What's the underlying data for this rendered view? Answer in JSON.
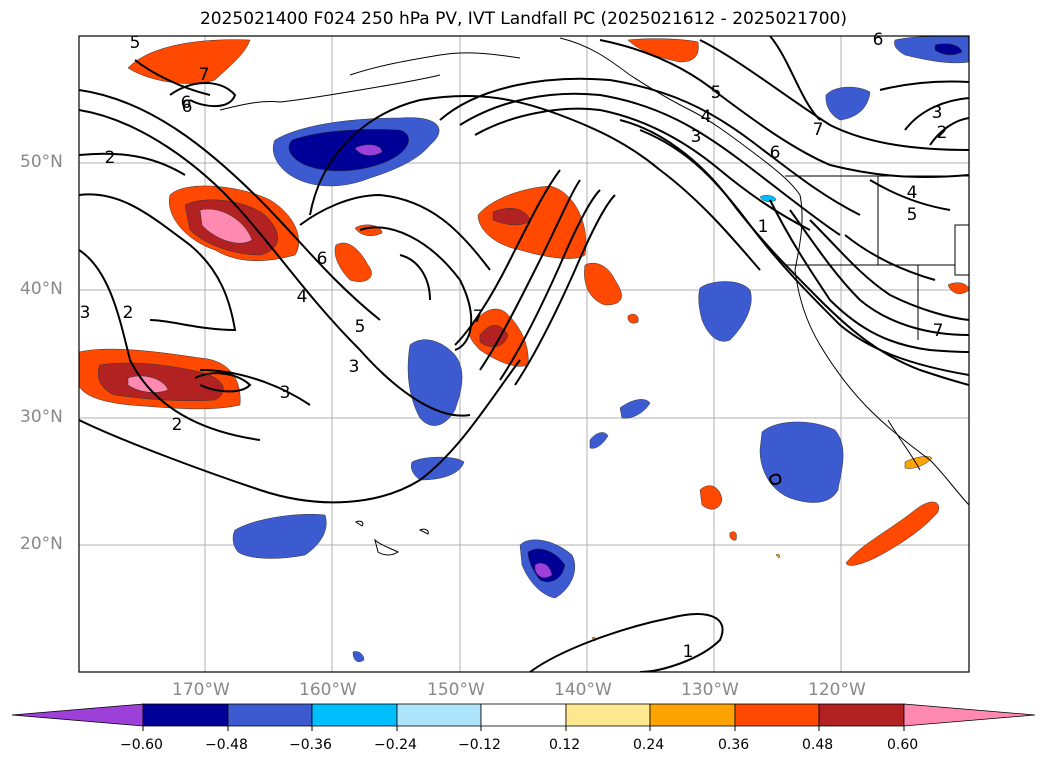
{
  "title": "2025021400 F024 250 hPa PV, IVT Landfall PC (2025021612 - 2025021700)",
  "lat_labels": [
    "50°N",
    "40°N",
    "30°N",
    "20°N"
  ],
  "lon_labels": [
    "170°W",
    "160°W",
    "150°W",
    "140°W",
    "130°W",
    "120°W"
  ],
  "colorbar": {
    "colors": [
      "#9d3fd9",
      "#000096",
      "#3c5bd0",
      "#00bfff",
      "#aee4fb",
      "#ffffff",
      "#ffe88f",
      "#ffa300",
      "#ff4800",
      "#b22222",
      "#ff89b0"
    ],
    "tick_labels": [
      "−0.60",
      "−0.48",
      "−0.36",
      "−0.24",
      "−0.12",
      "0.12",
      "0.24",
      "0.36",
      "0.48",
      "0.60"
    ]
  },
  "contour_labels": [
    "5",
    "6",
    "7",
    "2",
    "3",
    "6",
    "4",
    "5",
    "3",
    "2",
    "3",
    "2",
    "7",
    "6",
    "5",
    "4",
    "3",
    "6",
    "7",
    "1",
    "3",
    "2",
    "4",
    "5",
    "7",
    "6",
    "1"
  ]
}
